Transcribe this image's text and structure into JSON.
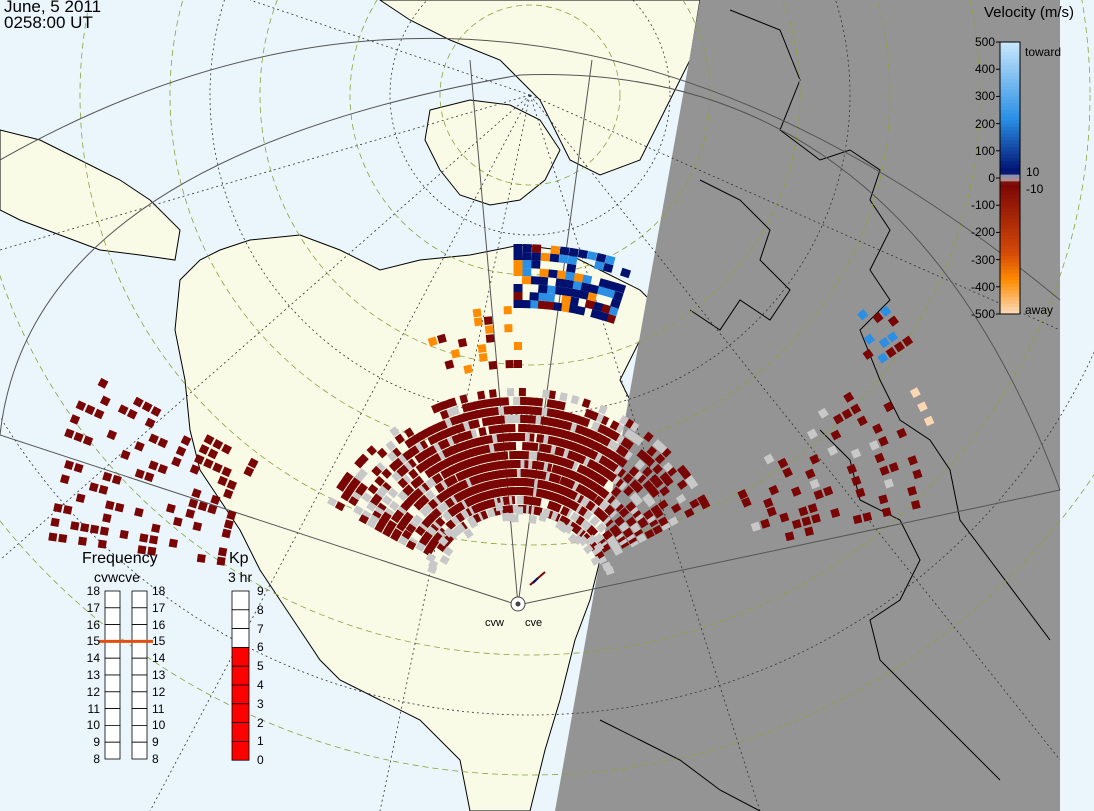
{
  "header": {
    "date": "June, 5 2011",
    "time": "0258:00 UT"
  },
  "velocity_scale": {
    "title": "Velocity (m/s)",
    "ticks": [
      "500",
      "400",
      "300",
      "200",
      "100",
      "0",
      "-100",
      "-200",
      "-300",
      "-400",
      "-500"
    ],
    "label_toward": "toward",
    "label_away": "away",
    "label_pos_threshold": "10",
    "label_neg_threshold": "-10",
    "colors": {
      "toward_light": "#c6e6fb",
      "toward_mid": "#2a8fe5",
      "toward_dark": "#00106e",
      "away_dark": "#7a0505",
      "away_mid": "#d44a08",
      "away_orange": "#ff8c00",
      "away_light": "#fbd7b3",
      "ground_scatter": "#c8c8c8"
    }
  },
  "frequency_panel": {
    "title": "Frequency",
    "subtitle": "cvwcve",
    "ticks": [
      "18",
      "17",
      "16",
      "15",
      "14",
      "13",
      "12",
      "11",
      "10",
      "9",
      "8"
    ],
    "cvw_value": 15,
    "cve_value": 15,
    "marker_color": "#e05010"
  },
  "kp_panel": {
    "title": "Kp",
    "subtitle": "3 hr",
    "ticks": [
      "9",
      "8",
      "7",
      "6",
      "5",
      "4",
      "3",
      "2",
      "1",
      "0"
    ],
    "value": 6,
    "fill_color": "#ff0000"
  },
  "radars": [
    {
      "id": "cvw",
      "label": "cvw"
    },
    {
      "id": "cve",
      "label": "cve"
    }
  ],
  "map": {
    "ocean_color": "#eaf6fc",
    "land_color": "#fafbe6",
    "night_color": "#949494"
  }
}
